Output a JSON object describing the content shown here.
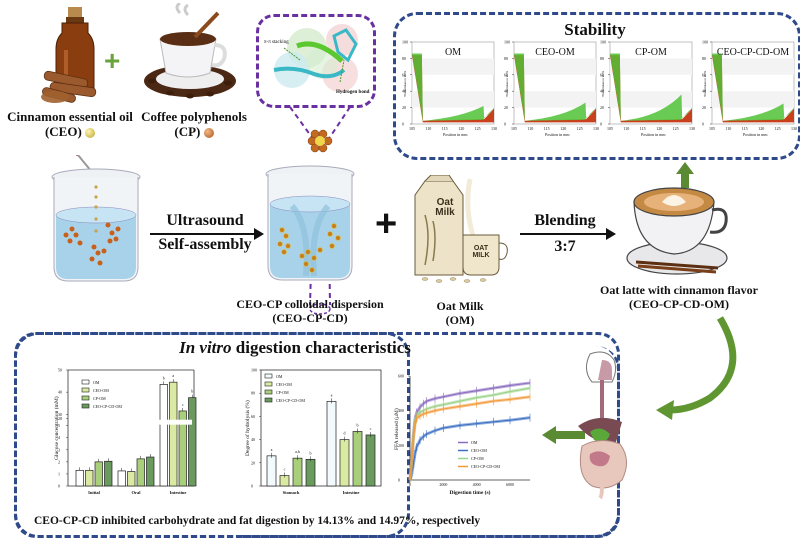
{
  "ingredients": {
    "ceo_label": "Cinnamon essential oil",
    "ceo_abbr": "(CEO)",
    "cp_label": "Coffee polyphenols",
    "cp_abbr": "(CP)",
    "plus": "+"
  },
  "molecule_inset": {
    "pi_stacking": "π-π stacking",
    "hydrogen_bond": "Hydrogen bond"
  },
  "process": {
    "step1_line1": "Ultrasound",
    "step1_line2": "Self-assembly",
    "dispersion_label": "CEO-CP colloidal dispersion",
    "dispersion_abbr": "(CEO-CP-CD)",
    "plus": "+",
    "oat_milk_label": "Oat Milk",
    "oat_milk_abbr": "(OM)",
    "blending_label": "Blending",
    "blending_ratio": "3:7",
    "latte_label": "Oat latte with cinnamon flavor",
    "latte_abbr": "(CEO-CP-CD-OM)",
    "carton_text_1": "Oat",
    "carton_text_2": "Milk",
    "cup_text": "OAT MILK"
  },
  "stability": {
    "title": "Stability",
    "panels": [
      {
        "label": "OM",
        "peak": 22
      },
      {
        "label": "CEO-OM",
        "peak": 26
      },
      {
        "label": "CP-OM",
        "peak": 36
      },
      {
        "label": "CEO-CP-CD-OM",
        "peak": 25
      }
    ],
    "xlabel": "Position in mm",
    "ylabel": "Transmission in %",
    "xticks": [
      "105",
      "110",
      "115",
      "120",
      "125",
      "130"
    ],
    "yticks": [
      "0",
      "20",
      "40",
      "60",
      "80",
      "100"
    ]
  },
  "digestion": {
    "title_italic": "In vitro",
    "title_rest": " digestion characteristics",
    "conclusion": "CEO-CP-CD inhibited carbohydrate and fat digestion by 14.13% and 14.97%, respectively"
  },
  "chart_data": [
    {
      "type": "bar",
      "title": "",
      "ylabel": "Glucose concentration (mM)",
      "xlabel": "",
      "categories": [
        "Initial",
        "Oral",
        "Intestine"
      ],
      "ylim": [
        0,
        50
      ],
      "axis_break": [
        5,
        28
      ],
      "yticks": [
        "0",
        "1",
        "2",
        "3",
        "4",
        "5",
        "28",
        "30",
        "40",
        "50"
      ],
      "legend": "top-left",
      "series": [
        {
          "name": "OM",
          "color": "#ffffff",
          "values": [
            1.3,
            1.25,
            43.5
          ],
          "letters": [
            "",
            "",
            "b"
          ]
        },
        {
          "name": "CEO-OM",
          "color": "#dbeaa2",
          "values": [
            1.3,
            1.2,
            44.5
          ],
          "letters": [
            "",
            "",
            "a"
          ]
        },
        {
          "name": "CP-OM",
          "color": "#a9cf7a",
          "values": [
            2.0,
            2.25,
            31.5
          ],
          "letters": [
            "",
            "",
            "c"
          ]
        },
        {
          "name": "CEO-CP-CD-OM",
          "color": "#6a9a5e",
          "values": [
            2.05,
            2.4,
            37.5
          ],
          "letters": [
            "",
            "",
            "b"
          ]
        }
      ]
    },
    {
      "type": "bar",
      "title": "",
      "ylabel": "Degree of hydrolysis (%)",
      "xlabel": "",
      "categories": [
        "Stomach",
        "Intestine"
      ],
      "ylim": [
        0,
        100
      ],
      "yticks": [
        "0",
        "20",
        "40",
        "60",
        "80",
        "100"
      ],
      "legend": "top-left",
      "series": [
        {
          "name": "OM",
          "color": "#f3fafd",
          "values": [
            26,
            73
          ],
          "letters": [
            "a",
            "a"
          ]
        },
        {
          "name": "CEO-OM",
          "color": "#dbeaa2",
          "values": [
            9,
            40
          ],
          "letters": [
            "c",
            "d"
          ]
        },
        {
          "name": "CP-OM",
          "color": "#a9cf7a",
          "values": [
            24,
            47
          ],
          "letters": [
            "a,b",
            "b"
          ]
        },
        {
          "name": "CEO-CP-CD-OM",
          "color": "#6a9a5e",
          "values": [
            23,
            44
          ],
          "letters": [
            "b",
            "c"
          ]
        }
      ]
    },
    {
      "type": "line",
      "title": "",
      "xlabel": "Digestion time (s)",
      "ylabel": "FFA released (μM)",
      "xlim": [
        0,
        7200
      ],
      "ylim": [
        0,
        600
      ],
      "xticks": [
        "0",
        "2000",
        "4000",
        "6000"
      ],
      "yticks": [
        "0",
        "200",
        "400",
        "600"
      ],
      "legend": "bottom-right",
      "x": [
        0,
        100,
        200,
        300,
        400,
        600,
        800,
        1000,
        1500,
        2000,
        3000,
        4000,
        5000,
        6000,
        7200
      ],
      "series": [
        {
          "name": "OM",
          "color": "#8a6cc0",
          "values": [
            0,
            120,
            260,
            350,
            390,
            420,
            440,
            455,
            470,
            480,
            500,
            515,
            530,
            545,
            560
          ]
        },
        {
          "name": "CEO-OM",
          "color": "#3b6fc2",
          "values": [
            0,
            30,
            90,
            150,
            190,
            230,
            250,
            265,
            285,
            300,
            315,
            325,
            335,
            345,
            360
          ]
        },
        {
          "name": "CP-OM",
          "color": "#9ad38a",
          "values": [
            0,
            110,
            250,
            340,
            370,
            390,
            400,
            410,
            425,
            435,
            455,
            475,
            490,
            510,
            530
          ]
        },
        {
          "name": "CEO-CP-CD-OM",
          "color": "#f29a3a",
          "values": [
            0,
            100,
            230,
            320,
            355,
            370,
            380,
            388,
            400,
            410,
            425,
            440,
            455,
            465,
            480
          ]
        }
      ]
    }
  ]
}
